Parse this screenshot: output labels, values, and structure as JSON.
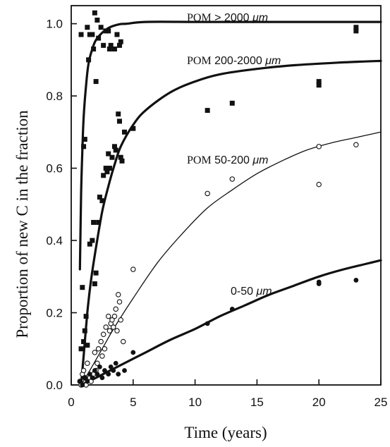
{
  "chart_data": {
    "type": "scatter",
    "xlabel": "Time (years)",
    "ylabel": "Proportion of new C in the fraction",
    "xlim": [
      0,
      25
    ],
    "ylim": [
      0,
      1.05
    ],
    "xticks": [
      "0",
      "5",
      "10",
      "15",
      "20",
      "25"
    ],
    "yticks": [
      "0.0",
      "0.2",
      "0.4",
      "0.6",
      "0.8",
      "1.0"
    ],
    "grid": false,
    "legend": "none",
    "series": [
      {
        "name": "POM > 2000 μm",
        "label_parts": [
          "POM",
          " > 2000 ",
          "μm"
        ],
        "marker": "filled-square",
        "curve_weight": "heavy",
        "points": [
          [
            0.8,
            0.97
          ],
          [
            1.0,
            0.66
          ],
          [
            1.1,
            0.68
          ],
          [
            1.3,
            0.99
          ],
          [
            1.4,
            0.9
          ],
          [
            1.5,
            0.97
          ],
          [
            1.7,
            0.97
          ],
          [
            1.8,
            0.93
          ],
          [
            1.9,
            1.03
          ],
          [
            2.0,
            0.84
          ],
          [
            2.1,
            1.01
          ],
          [
            2.2,
            0.96
          ],
          [
            2.4,
            0.99
          ],
          [
            2.6,
            0.94
          ],
          [
            2.8,
            0.98
          ],
          [
            3.0,
            0.98
          ],
          [
            3.1,
            0.93
          ],
          [
            3.2,
            0.94
          ],
          [
            3.5,
            0.93
          ],
          [
            3.7,
            0.97
          ],
          [
            3.9,
            0.94
          ],
          [
            4.0,
            0.95
          ],
          [
            23.0,
            0.99
          ],
          [
            23.0,
            0.98
          ]
        ],
        "curve": [
          [
            0.7,
            0.32
          ],
          [
            0.8,
            0.53
          ],
          [
            0.9,
            0.65
          ],
          [
            1.0,
            0.74
          ],
          [
            1.2,
            0.83
          ],
          [
            1.4,
            0.89
          ],
          [
            1.7,
            0.93
          ],
          [
            2.0,
            0.955
          ],
          [
            2.5,
            0.975
          ],
          [
            3.0,
            0.988
          ],
          [
            3.5,
            0.995
          ],
          [
            4.0,
            0.999
          ],
          [
            4.5,
            1.0
          ],
          [
            6.0,
            1.005
          ],
          [
            10.0,
            1.005
          ],
          [
            15.0,
            1.005
          ],
          [
            20.0,
            1.005
          ],
          [
            25.0,
            1.005
          ]
        ]
      },
      {
        "name": "POM 200-2000 μm",
        "label_parts": [
          "POM",
          " 200-2000 ",
          "μm"
        ],
        "marker": "filled-square",
        "curve_weight": "heavy",
        "points": [
          [
            0.8,
            0.1
          ],
          [
            0.9,
            0.27
          ],
          [
            1.0,
            0.12
          ],
          [
            1.1,
            0.15
          ],
          [
            1.2,
            0.19
          ],
          [
            1.3,
            0.11
          ],
          [
            1.5,
            0.39
          ],
          [
            1.7,
            0.4
          ],
          [
            1.8,
            0.45
          ],
          [
            1.9,
            0.28
          ],
          [
            2.0,
            0.31
          ],
          [
            2.2,
            0.45
          ],
          [
            2.3,
            0.52
          ],
          [
            2.5,
            0.51
          ],
          [
            2.6,
            0.58
          ],
          [
            2.8,
            0.6
          ],
          [
            2.9,
            0.59
          ],
          [
            3.0,
            0.64
          ],
          [
            3.1,
            0.6
          ],
          [
            3.3,
            0.63
          ],
          [
            3.5,
            0.66
          ],
          [
            3.6,
            0.65
          ],
          [
            3.8,
            0.75
          ],
          [
            3.9,
            0.73
          ],
          [
            4.0,
            0.63
          ],
          [
            4.1,
            0.62
          ],
          [
            4.3,
            0.7
          ],
          [
            5.0,
            0.71
          ],
          [
            11.0,
            0.76
          ],
          [
            13.0,
            0.78
          ],
          [
            20.0,
            0.84
          ],
          [
            20.0,
            0.83
          ]
        ],
        "curve": [
          [
            0.8,
            0.0
          ],
          [
            1.0,
            0.08
          ],
          [
            1.3,
            0.2
          ],
          [
            1.6,
            0.29
          ],
          [
            2.0,
            0.38
          ],
          [
            2.5,
            0.48
          ],
          [
            3.0,
            0.55
          ],
          [
            3.5,
            0.61
          ],
          [
            4.0,
            0.66
          ],
          [
            5.0,
            0.72
          ],
          [
            6.0,
            0.76
          ],
          [
            8.0,
            0.81
          ],
          [
            10.0,
            0.84
          ],
          [
            12.0,
            0.86
          ],
          [
            15.0,
            0.875
          ],
          [
            18.0,
            0.885
          ],
          [
            22.0,
            0.893
          ],
          [
            25.0,
            0.897
          ]
        ]
      },
      {
        "name": "POM 50-200 μm",
        "label_parts": [
          "POM",
          " 50-200 ",
          "μm"
        ],
        "marker": "open-circle",
        "curve_weight": "thin",
        "points": [
          [
            0.7,
            0.01
          ],
          [
            0.8,
            0.0
          ],
          [
            0.9,
            0.03
          ],
          [
            1.0,
            0.04
          ],
          [
            1.1,
            0.02
          ],
          [
            1.2,
            0.0
          ],
          [
            1.3,
            0.06
          ],
          [
            1.5,
            0.02
          ],
          [
            1.6,
            0.01
          ],
          [
            1.8,
            0.03
          ],
          [
            1.9,
            0.09
          ],
          [
            2.0,
            0.04
          ],
          [
            2.1,
            0.06
          ],
          [
            2.2,
            0.1
          ],
          [
            2.4,
            0.12
          ],
          [
            2.5,
            0.08
          ],
          [
            2.6,
            0.14
          ],
          [
            2.7,
            0.1
          ],
          [
            2.8,
            0.16
          ],
          [
            3.0,
            0.19
          ],
          [
            3.1,
            0.15
          ],
          [
            3.2,
            0.17
          ],
          [
            3.3,
            0.18
          ],
          [
            3.4,
            0.16
          ],
          [
            3.5,
            0.19
          ],
          [
            3.6,
            0.21
          ],
          [
            3.7,
            0.15
          ],
          [
            3.8,
            0.25
          ],
          [
            3.9,
            0.23
          ],
          [
            4.0,
            0.18
          ],
          [
            4.2,
            0.12
          ],
          [
            5.0,
            0.32
          ],
          [
            11.0,
            0.53
          ],
          [
            13.0,
            0.57
          ],
          [
            20.0,
            0.66
          ],
          [
            20.0,
            0.555
          ],
          [
            23.0,
            0.665
          ]
        ],
        "curve": [
          [
            0.8,
            0.0
          ],
          [
            1.5,
            0.04
          ],
          [
            2.5,
            0.1
          ],
          [
            3.5,
            0.16
          ],
          [
            5.0,
            0.24
          ],
          [
            7.0,
            0.34
          ],
          [
            9.0,
            0.42
          ],
          [
            11.0,
            0.49
          ],
          [
            13.0,
            0.54
          ],
          [
            15.0,
            0.585
          ],
          [
            17.0,
            0.62
          ],
          [
            19.0,
            0.65
          ],
          [
            21.0,
            0.67
          ],
          [
            23.0,
            0.685
          ],
          [
            25.0,
            0.7
          ]
        ]
      },
      {
        "name": "0-50 μm",
        "label_parts": [
          "",
          "0-50 ",
          "μm"
        ],
        "marker": "filled-circle",
        "curve_weight": "heavy",
        "points": [
          [
            0.7,
            0.01
          ],
          [
            0.9,
            0.0
          ],
          [
            1.1,
            0.02
          ],
          [
            1.3,
            0.01
          ],
          [
            1.5,
            0.03
          ],
          [
            1.7,
            0.02
          ],
          [
            1.9,
            0.04
          ],
          [
            2.1,
            0.03
          ],
          [
            2.3,
            0.05
          ],
          [
            2.5,
            0.02
          ],
          [
            2.7,
            0.04
          ],
          [
            3.0,
            0.03
          ],
          [
            3.2,
            0.05
          ],
          [
            3.4,
            0.04
          ],
          [
            3.6,
            0.06
          ],
          [
            3.8,
            0.03
          ],
          [
            4.3,
            0.04
          ],
          [
            5.0,
            0.09
          ],
          [
            11.0,
            0.17
          ],
          [
            13.0,
            0.21
          ],
          [
            20.0,
            0.28
          ],
          [
            20.0,
            0.285
          ],
          [
            23.0,
            0.29
          ]
        ],
        "curve": [
          [
            0.8,
            0.0
          ],
          [
            2.0,
            0.02
          ],
          [
            4.0,
            0.055
          ],
          [
            6.0,
            0.09
          ],
          [
            8.0,
            0.125
          ],
          [
            10.0,
            0.155
          ],
          [
            12.0,
            0.19
          ],
          [
            14.0,
            0.22
          ],
          [
            16.0,
            0.25
          ],
          [
            18.0,
            0.275
          ],
          [
            20.0,
            0.3
          ],
          [
            22.0,
            0.32
          ],
          [
            25.0,
            0.345
          ]
        ]
      }
    ]
  }
}
